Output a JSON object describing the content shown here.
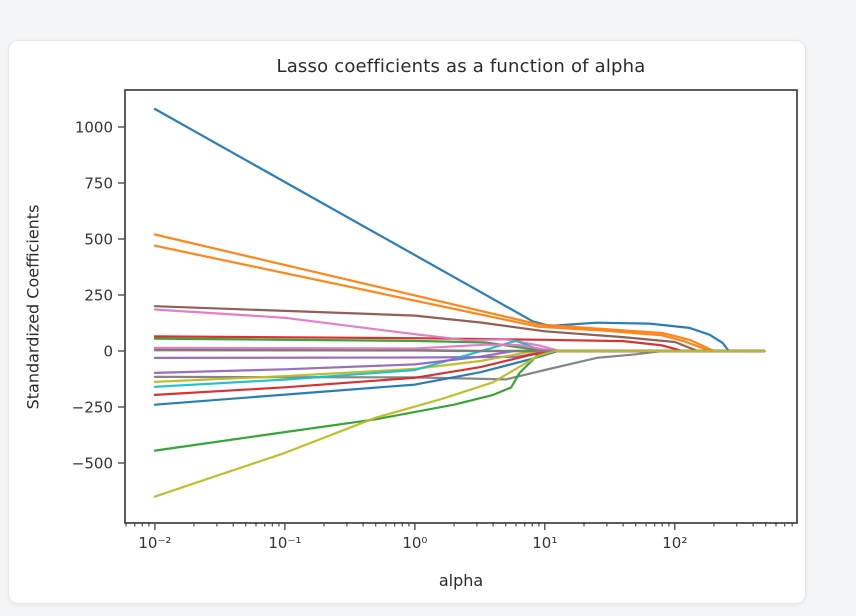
{
  "page": {
    "background_color": "#f4f5f6",
    "card_background_color": "#ffffff"
  },
  "chart_data": {
    "type": "line",
    "title": "Lasso coefficients as a function of alpha",
    "xlabel": "alpha",
    "ylabel": "Standardized Coefficients",
    "x_scale": "log",
    "grid": false,
    "legend_position": "none",
    "xlim_log10": [
      -2.23,
      2.94
    ],
    "ylim": [
      -768,
      1165
    ],
    "x_ticks": [
      {
        "log10": -2,
        "label": "10⁻²"
      },
      {
        "log10": -1,
        "label": "10⁻¹"
      },
      {
        "log10": 0,
        "label": "10⁰"
      },
      {
        "log10": 1,
        "label": "10¹"
      },
      {
        "log10": 2,
        "label": "10²"
      }
    ],
    "x_minor_decades": [
      -3,
      -2,
      -1,
      0,
      1,
      2
    ],
    "y_ticks": [
      {
        "value": 1000,
        "label": "1000"
      },
      {
        "value": 750,
        "label": "750"
      },
      {
        "value": 500,
        "label": "500"
      },
      {
        "value": 250,
        "label": "250"
      },
      {
        "value": 0,
        "label": "0"
      },
      {
        "value": -250,
        "label": "−250"
      },
      {
        "value": -500,
        "label": "−500"
      }
    ],
    "series": [
      {
        "name": "coef-path-1",
        "color": "#1f77b4",
        "points": [
          [
            0.01,
            1080
          ],
          [
            8.1,
            132
          ],
          [
            11,
            112
          ],
          [
            25,
            126
          ],
          [
            64,
            122
          ],
          [
            130,
            103
          ],
          [
            186,
            72
          ],
          [
            233,
            36
          ],
          [
            260,
            0
          ],
          [
            490,
            0
          ]
        ]
      },
      {
        "name": "coef-path-2",
        "color": "#ff7f0e",
        "points": [
          [
            0.01,
            520
          ],
          [
            9,
            118
          ],
          [
            30,
            97
          ],
          [
            80,
            80
          ],
          [
            130,
            50
          ],
          [
            200,
            0
          ],
          [
            490,
            0
          ]
        ]
      },
      {
        "name": "coef-path-3",
        "color": "#2ca02c",
        "points": [
          [
            0.01,
            55
          ],
          [
            1,
            45
          ],
          [
            3.5,
            38
          ],
          [
            8,
            8
          ],
          [
            10,
            0
          ],
          [
            490,
            0
          ]
        ]
      },
      {
        "name": "coef-path-4",
        "color": "#d62728",
        "points": [
          [
            0.01,
            65
          ],
          [
            1,
            57
          ],
          [
            10,
            50
          ],
          [
            40,
            44
          ],
          [
            80,
            25
          ],
          [
            115,
            0
          ],
          [
            490,
            0
          ]
        ]
      },
      {
        "name": "coef-path-5",
        "color": "#9467bd",
        "points": [
          [
            0.01,
            -31
          ],
          [
            1,
            -29
          ],
          [
            6,
            -26
          ],
          [
            9,
            -10
          ],
          [
            11,
            0
          ],
          [
            490,
            0
          ]
        ]
      },
      {
        "name": "coef-path-6",
        "color": "#8c564b",
        "points": [
          [
            0.01,
            200
          ],
          [
            1,
            158
          ],
          [
            3.2,
            127
          ],
          [
            10,
            88
          ],
          [
            40,
            62
          ],
          [
            100,
            40
          ],
          [
            150,
            0
          ],
          [
            490,
            0
          ]
        ]
      },
      {
        "name": "coef-path-7",
        "color": "#e377c2",
        "points": [
          [
            0.01,
            185
          ],
          [
            0.1,
            148
          ],
          [
            1,
            75
          ],
          [
            2.5,
            48
          ],
          [
            5,
            52
          ],
          [
            9,
            25
          ],
          [
            13,
            0
          ],
          [
            490,
            0
          ]
        ]
      },
      {
        "name": "coef-path-8",
        "color": "#7f7f7f",
        "points": [
          [
            0.01,
            -116
          ],
          [
            1,
            -118
          ],
          [
            5,
            -127
          ],
          [
            10,
            -85
          ],
          [
            25,
            -31
          ],
          [
            50,
            -15
          ],
          [
            80,
            0
          ],
          [
            490,
            0
          ]
        ]
      },
      {
        "name": "coef-path-9",
        "color": "#bcbd22",
        "points": [
          [
            0.01,
            -138
          ],
          [
            0.1,
            -112
          ],
          [
            1,
            -80
          ],
          [
            3.2,
            -45
          ],
          [
            7,
            -8
          ],
          [
            10,
            0
          ],
          [
            490,
            0
          ]
        ]
      },
      {
        "name": "coef-path-10",
        "color": "#17becf",
        "points": [
          [
            0.01,
            -160
          ],
          [
            0.1,
            -128
          ],
          [
            1,
            -85
          ],
          [
            2,
            -35
          ],
          [
            4,
            15
          ],
          [
            6,
            45
          ],
          [
            8.5,
            12
          ],
          [
            11,
            0
          ],
          [
            490,
            0
          ]
        ]
      },
      {
        "name": "coef-path-11",
        "color": "#1f77b4",
        "points": [
          [
            0.01,
            -240
          ],
          [
            0.1,
            -195
          ],
          [
            1,
            -150
          ],
          [
            3.2,
            -95
          ],
          [
            8,
            -35
          ],
          [
            12.6,
            0
          ],
          [
            490,
            0
          ]
        ]
      },
      {
        "name": "coef-path-12",
        "color": "#ff7f0e",
        "points": [
          [
            0.01,
            470
          ],
          [
            9,
            108
          ],
          [
            30,
            90
          ],
          [
            80,
            70
          ],
          [
            120,
            42
          ],
          [
            188,
            0
          ],
          [
            490,
            0
          ]
        ]
      },
      {
        "name": "coef-path-13",
        "color": "#2ca02c",
        "points": [
          [
            0.01,
            -445
          ],
          [
            0.1,
            -362
          ],
          [
            0.5,
            -305
          ],
          [
            2,
            -240
          ],
          [
            4,
            -196
          ],
          [
            5.5,
            -163
          ],
          [
            6.4,
            -98
          ],
          [
            8.8,
            -18
          ],
          [
            11,
            0
          ],
          [
            490,
            0
          ]
        ]
      },
      {
        "name": "coef-path-14",
        "color": "#d62728",
        "points": [
          [
            0.01,
            -196
          ],
          [
            0.1,
            -162
          ],
          [
            1,
            -120
          ],
          [
            3.2,
            -72
          ],
          [
            8,
            -16
          ],
          [
            11.5,
            0
          ],
          [
            490,
            0
          ]
        ]
      },
      {
        "name": "coef-path-15",
        "color": "#9467bd",
        "points": [
          [
            0.01,
            -98
          ],
          [
            0.1,
            -82
          ],
          [
            1,
            -60
          ],
          [
            3.2,
            -25
          ],
          [
            5.8,
            0
          ],
          [
            490,
            0
          ]
        ]
      },
      {
        "name": "coef-path-16",
        "color": "#8c564b",
        "points": [
          [
            0.01,
            6
          ],
          [
            1,
            4
          ],
          [
            3.2,
            0
          ],
          [
            490,
            0
          ]
        ]
      },
      {
        "name": "coef-path-17",
        "color": "#e377c2",
        "points": [
          [
            0.01,
            14
          ],
          [
            1,
            11
          ],
          [
            3.5,
            28
          ],
          [
            6.3,
            26
          ],
          [
            10,
            6
          ],
          [
            12.6,
            0
          ],
          [
            490,
            0
          ]
        ]
      },
      {
        "name": "coef-path-18",
        "color": "#7f7f7f",
        "points": [
          [
            0.01,
            3
          ],
          [
            1,
            2
          ],
          [
            2.2,
            0
          ],
          [
            490,
            0
          ]
        ]
      },
      {
        "name": "coef-path-19",
        "color": "#bcbd22",
        "points": [
          [
            0.01,
            -650
          ],
          [
            0.1,
            -455
          ],
          [
            0.5,
            -298
          ],
          [
            1.6,
            -215
          ],
          [
            4,
            -140
          ],
          [
            9,
            -20
          ],
          [
            12,
            0
          ],
          [
            490,
            0
          ]
        ]
      }
    ]
  }
}
